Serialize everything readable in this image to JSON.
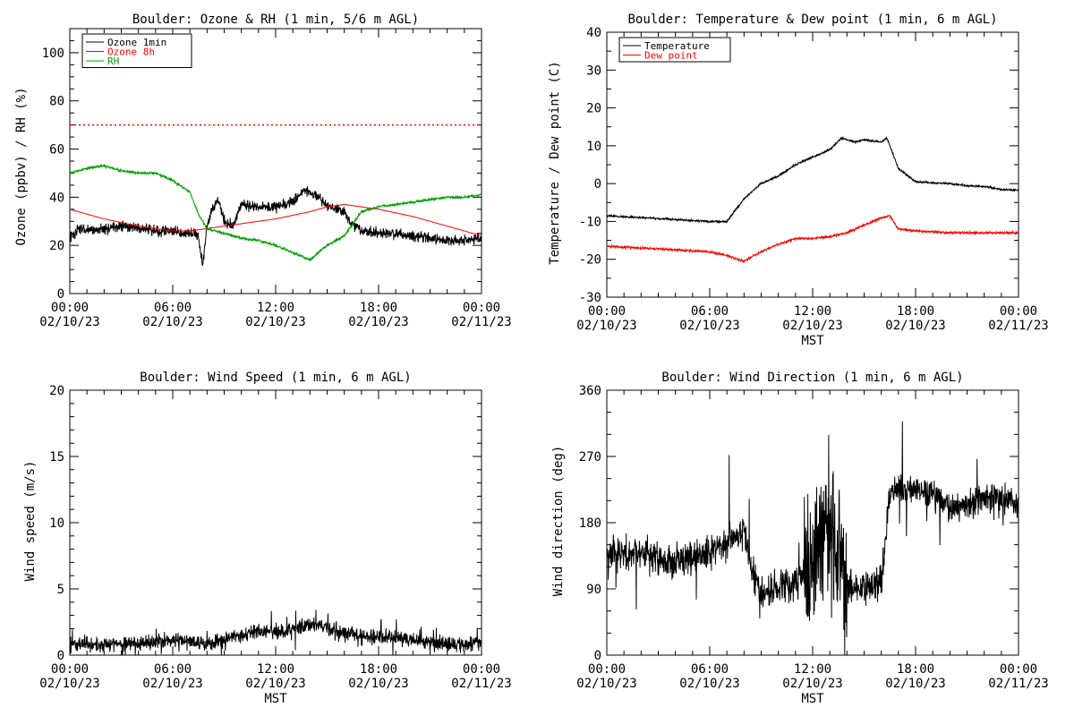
{
  "chart_data": [
    {
      "id": "ozone",
      "type": "line",
      "title": "Boulder: Ozone & RH (1 min, 5/6 m AGL)",
      "ylabel": "Ozone (ppbv) / RH (%)",
      "xlabel": "",
      "xlim": [
        "2023-02-10 00:00",
        "2023-02-11 00:00"
      ],
      "ylim": [
        0,
        110
      ],
      "yticks": [
        "0",
        "20",
        "40",
        "60",
        "80",
        "100"
      ],
      "xticks": [
        {
          "time": "00:00",
          "date": "02/10/23"
        },
        {
          "time": "06:00",
          "date": "02/10/23"
        },
        {
          "time": "12:00",
          "date": "02/10/23"
        },
        {
          "time": "18:00",
          "date": "02/10/23"
        },
        {
          "time": "00:00",
          "date": "02/11/23"
        }
      ],
      "legend": {
        "position": "top-left",
        "entries": [
          {
            "name": "Ozone 1min",
            "color": "#000000"
          },
          {
            "name": "Ozone 8h",
            "color": "#ff0000"
          },
          {
            "name": "RH",
            "color": "#00a000"
          }
        ]
      },
      "reference_lines": [
        {
          "y": 70,
          "style": "dotted",
          "color": "#ff0000"
        }
      ],
      "series": [
        {
          "name": "Ozone 1min",
          "color": "#000000",
          "noise": 2.2,
          "points": [
            [
              "00:00",
              23
            ],
            [
              "00:30",
              27
            ],
            [
              "01:00",
              26
            ],
            [
              "02:00",
              27
            ],
            [
              "03:00",
              28
            ],
            [
              "04:00",
              27
            ],
            [
              "05:00",
              26
            ],
            [
              "06:00",
              26
            ],
            [
              "07:00",
              25
            ],
            [
              "07:30",
              24
            ],
            [
              "07:45",
              12
            ],
            [
              "08:00",
              28
            ],
            [
              "08:20",
              36
            ],
            [
              "08:40",
              39
            ],
            [
              "09:00",
              30
            ],
            [
              "09:30",
              28
            ],
            [
              "10:00",
              37
            ],
            [
              "11:00",
              36
            ],
            [
              "12:00",
              36
            ],
            [
              "13:00",
              38
            ],
            [
              "13:40",
              43
            ],
            [
              "14:30",
              40
            ],
            [
              "15:00",
              36
            ],
            [
              "16:00",
              34
            ],
            [
              "16:20",
              30
            ],
            [
              "16:40",
              28
            ],
            [
              "17:00",
              26
            ],
            [
              "18:00",
              25
            ],
            [
              "19:00",
              25
            ],
            [
              "20:00",
              24
            ],
            [
              "21:00",
              23
            ],
            [
              "22:00",
              22
            ],
            [
              "23:00",
              22
            ],
            [
              "24:00",
              23
            ]
          ]
        },
        {
          "name": "Ozone 8h",
          "color": "#ff0000",
          "noise": 0,
          "points": [
            [
              "00:00",
              35
            ],
            [
              "02:00",
              31
            ],
            [
              "04:00",
              28
            ],
            [
              "06:00",
              26
            ],
            [
              "07:00",
              26
            ],
            [
              "08:00",
              27
            ],
            [
              "10:00",
              29
            ],
            [
              "12:00",
              31
            ],
            [
              "14:00",
              34
            ],
            [
              "15:00",
              36
            ],
            [
              "16:00",
              37
            ],
            [
              "17:00",
              36
            ],
            [
              "18:00",
              35
            ],
            [
              "20:00",
              32
            ],
            [
              "22:00",
              28
            ],
            [
              "24:00",
              24
            ]
          ]
        },
        {
          "name": "RH",
          "color": "#00a000",
          "noise": 0.5,
          "points": [
            [
              "00:00",
              50
            ],
            [
              "01:00",
              52
            ],
            [
              "02:00",
              53
            ],
            [
              "03:00",
              51
            ],
            [
              "04:00",
              50
            ],
            [
              "05:00",
              50
            ],
            [
              "06:00",
              47
            ],
            [
              "07:00",
              42
            ],
            [
              "07:30",
              33
            ],
            [
              "08:00",
              27
            ],
            [
              "09:00",
              25
            ],
            [
              "10:00",
              23
            ],
            [
              "11:00",
              22
            ],
            [
              "12:00",
              20
            ],
            [
              "13:00",
              17
            ],
            [
              "14:00",
              14
            ],
            [
              "14:30",
              17
            ],
            [
              "15:00",
              20
            ],
            [
              "16:00",
              24
            ],
            [
              "16:30",
              29
            ],
            [
              "17:00",
              34
            ],
            [
              "18:00",
              36
            ],
            [
              "19:00",
              37
            ],
            [
              "20:00",
              38
            ],
            [
              "21:00",
              39
            ],
            [
              "22:00",
              40
            ],
            [
              "23:00",
              40
            ],
            [
              "24:00",
              41
            ]
          ]
        }
      ]
    },
    {
      "id": "temperature",
      "type": "line",
      "title": "Boulder: Temperature & Dew point (1 min, 6 m AGL)",
      "ylabel": "Temperature / Dew point (C)",
      "xlabel": "MST",
      "xlim": [
        "2023-02-10 00:00",
        "2023-02-11 00:00"
      ],
      "ylim": [
        -30,
        40
      ],
      "yticks": [
        "-30",
        "-20",
        "-10",
        "0",
        "10",
        "20",
        "30",
        "40"
      ],
      "xticks": [
        {
          "time": "00:00",
          "date": "02/10/23"
        },
        {
          "time": "06:00",
          "date": "02/10/23"
        },
        {
          "time": "12:00",
          "date": "02/10/23"
        },
        {
          "time": "18:00",
          "date": "02/10/23"
        },
        {
          "time": "00:00",
          "date": "02/11/23"
        }
      ],
      "legend": {
        "position": "top-left",
        "entries": [
          {
            "name": "Temperature",
            "color": "#000000"
          },
          {
            "name": "Dew point",
            "color": "#ff0000"
          }
        ]
      },
      "series": [
        {
          "name": "Temperature",
          "color": "#000000",
          "noise": 0.25,
          "points": [
            [
              "00:00",
              -8.5
            ],
            [
              "02:00",
              -9
            ],
            [
              "04:00",
              -9.5
            ],
            [
              "06:00",
              -10
            ],
            [
              "07:00",
              -10
            ],
            [
              "07:30",
              -7
            ],
            [
              "08:00",
              -4
            ],
            [
              "09:00",
              0
            ],
            [
              "10:00",
              2
            ],
            [
              "11:00",
              5
            ],
            [
              "11:30",
              6
            ],
            [
              "12:00",
              7
            ],
            [
              "13:00",
              9
            ],
            [
              "13:40",
              12
            ],
            [
              "14:30",
              11
            ],
            [
              "15:00",
              11.5
            ],
            [
              "16:00",
              11
            ],
            [
              "16:20",
              12
            ],
            [
              "16:40",
              8
            ],
            [
              "17:00",
              4
            ],
            [
              "18:00",
              0.5
            ],
            [
              "20:00",
              0
            ],
            [
              "21:00",
              -0.5
            ],
            [
              "22:00",
              -0.8
            ],
            [
              "23:00",
              -1.5
            ],
            [
              "24:00",
              -1.8
            ]
          ]
        },
        {
          "name": "Dew point",
          "color": "#ff0000",
          "noise": 0.3,
          "points": [
            [
              "00:00",
              -16.5
            ],
            [
              "02:00",
              -17
            ],
            [
              "04:00",
              -17.5
            ],
            [
              "06:00",
              -18
            ],
            [
              "07:00",
              -19
            ],
            [
              "08:00",
              -20.5
            ],
            [
              "09:00",
              -18
            ],
            [
              "10:00",
              -16
            ],
            [
              "11:00",
              -14.5
            ],
            [
              "12:00",
              -14.5
            ],
            [
              "13:00",
              -14
            ],
            [
              "14:00",
              -13
            ],
            [
              "15:00",
              -11
            ],
            [
              "16:00",
              -9
            ],
            [
              "16:30",
              -8.5
            ],
            [
              "17:00",
              -12
            ],
            [
              "18:00",
              -12.5
            ],
            [
              "20:00",
              -13
            ],
            [
              "22:00",
              -13
            ],
            [
              "24:00",
              -13
            ]
          ]
        }
      ]
    },
    {
      "id": "wind-speed",
      "type": "line",
      "title": "Boulder: Wind Speed (1 min, 6 m AGL)",
      "ylabel": "Wind speed (m/s)",
      "xlabel": "MST",
      "xlim": [
        "2023-02-10 00:00",
        "2023-02-11 00:00"
      ],
      "ylim": [
        0,
        20
      ],
      "yticks": [
        "0",
        "5",
        "10",
        "15",
        "20"
      ],
      "xticks": [
        {
          "time": "00:00",
          "date": "02/10/23"
        },
        {
          "time": "06:00",
          "date": "02/10/23"
        },
        {
          "time": "12:00",
          "date": "02/10/23"
        },
        {
          "time": "18:00",
          "date": "02/10/23"
        },
        {
          "time": "00:00",
          "date": "02/11/23"
        }
      ],
      "series": [
        {
          "name": "",
          "color": "#000000",
          "noise": 0.55,
          "points": [
            [
              "00:00",
              0.8
            ],
            [
              "02:00",
              0.8
            ],
            [
              "04:00",
              0.9
            ],
            [
              "06:00",
              1.1
            ],
            [
              "07:00",
              1
            ],
            [
              "08:00",
              0.8
            ],
            [
              "09:00",
              1.1
            ],
            [
              "10:00",
              1.5
            ],
            [
              "11:00",
              1.7
            ],
            [
              "12:00",
              1.8
            ],
            [
              "13:00",
              1.9
            ],
            [
              "14:00",
              2.3
            ],
            [
              "15:00",
              2.1
            ],
            [
              "16:00",
              1.6
            ],
            [
              "17:00",
              1.4
            ],
            [
              "18:00",
              1.3
            ],
            [
              "19:00",
              1.4
            ],
            [
              "20:00",
              1.1
            ],
            [
              "21:00",
              0.9
            ],
            [
              "22:00",
              0.8
            ],
            [
              "23:00",
              0.8
            ],
            [
              "24:00",
              1.0
            ]
          ]
        }
      ]
    },
    {
      "id": "wind-direction",
      "type": "line",
      "title": "Boulder: Wind Direction (1 min, 6 m AGL)",
      "ylabel": "Wind direction (deg)",
      "xlabel": "MST",
      "xlim": [
        "2023-02-10 00:00",
        "2023-02-11 00:00"
      ],
      "ylim": [
        0,
        360
      ],
      "yticks": [
        "0",
        "90",
        "180",
        "270",
        "360"
      ],
      "xticks": [
        {
          "time": "00:00",
          "date": "02/10/23"
        },
        {
          "time": "06:00",
          "date": "02/10/23"
        },
        {
          "time": "12:00",
          "date": "02/10/23"
        },
        {
          "time": "18:00",
          "date": "02/10/23"
        },
        {
          "time": "00:00",
          "date": "02/11/23"
        }
      ],
      "series": [
        {
          "name": "",
          "color": "#000000",
          "noise": 22,
          "points": [
            [
              "00:00",
              140
            ],
            [
              "02:00",
              140
            ],
            [
              "04:00",
              125
            ],
            [
              "06:00",
              140
            ],
            [
              "07:00",
              155
            ],
            [
              "08:00",
              165
            ],
            [
              "08:30",
              110
            ],
            [
              "09:00",
              80
            ],
            [
              "10:00",
              95
            ],
            [
              "11:00",
              100
            ],
            [
              "12:00",
              120
            ],
            [
              "13:00",
              180
            ],
            [
              "14:00",
              90
            ],
            [
              "15:00",
              90
            ],
            [
              "16:00",
              100
            ],
            [
              "16:30",
              220
            ],
            [
              "17:00",
              225
            ],
            [
              "18:00",
              225
            ],
            [
              "19:00",
              220
            ],
            [
              "20:00",
              200
            ],
            [
              "21:00",
              205
            ],
            [
              "22:00",
              215
            ],
            [
              "23:00",
              210
            ],
            [
              "24:00",
              200
            ]
          ]
        }
      ]
    }
  ]
}
